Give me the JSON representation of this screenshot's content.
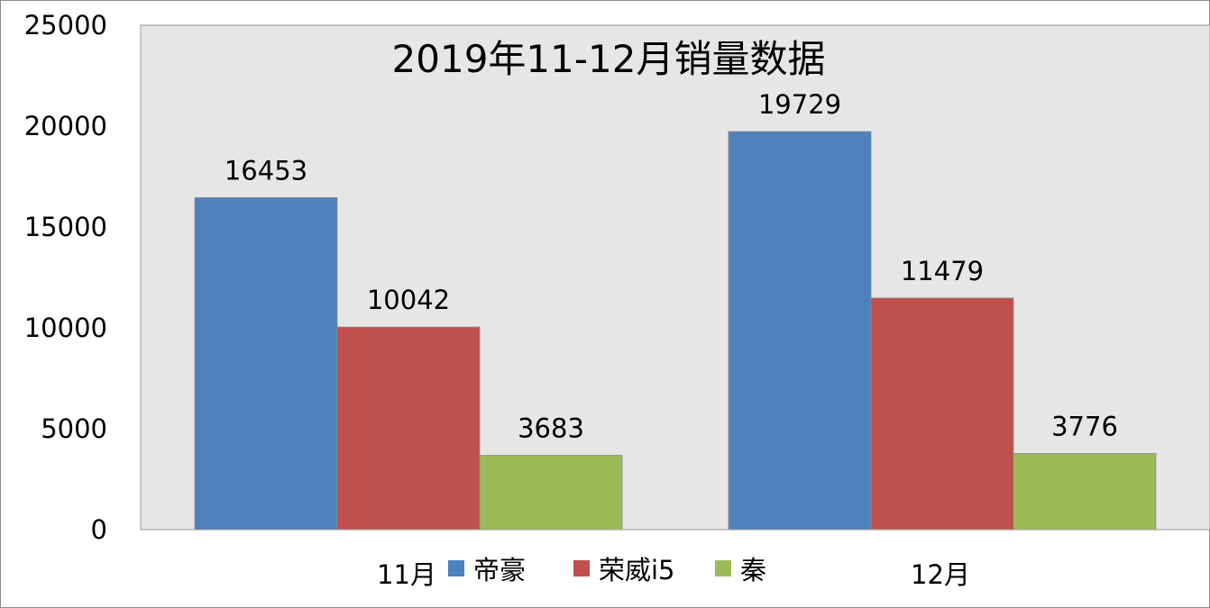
{
  "chart_data": {
    "type": "bar",
    "title": "2019年11-12月销量数据",
    "categories": [
      "11月",
      "12月"
    ],
    "series": [
      {
        "name": "帝豪",
        "values": [
          16453,
          19729
        ],
        "color": "#4f81bd"
      },
      {
        "name": "荣威i5",
        "values": [
          10042,
          11479
        ],
        "color": "#c0504d"
      },
      {
        "name": "秦",
        "values": [
          3683,
          3776
        ],
        "color": "#9bbb59"
      }
    ],
    "yticks": [
      0,
      5000,
      10000,
      15000,
      20000,
      25000
    ],
    "ylim": [
      0,
      25000
    ],
    "data_labels": true,
    "grid": false,
    "legend": "bottom"
  }
}
